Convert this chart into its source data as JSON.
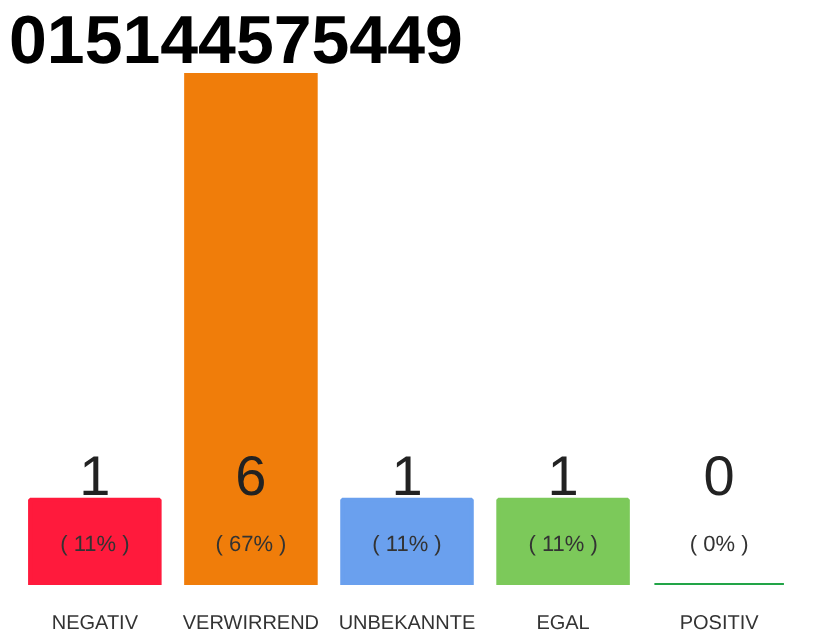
{
  "chart_data": {
    "type": "bar",
    "title": "015144575449",
    "categories": [
      "NEGATIV",
      "VERWIRREND",
      "UNBEKANNTE",
      "EGAL",
      "POSITIV"
    ],
    "values": [
      1,
      6,
      1,
      1,
      0
    ],
    "colors": [
      "#ff1a3c",
      "#f07d0a",
      "#6aa0ee",
      "#7cc95a",
      "#22a447"
    ],
    "value_labels": [
      "1",
      "6",
      "1",
      "1",
      "0"
    ],
    "annotations": [
      "( 11% )",
      "( 67% )",
      "( 11% )",
      "( 11% )",
      "( 0% )"
    ],
    "grid": false
  }
}
